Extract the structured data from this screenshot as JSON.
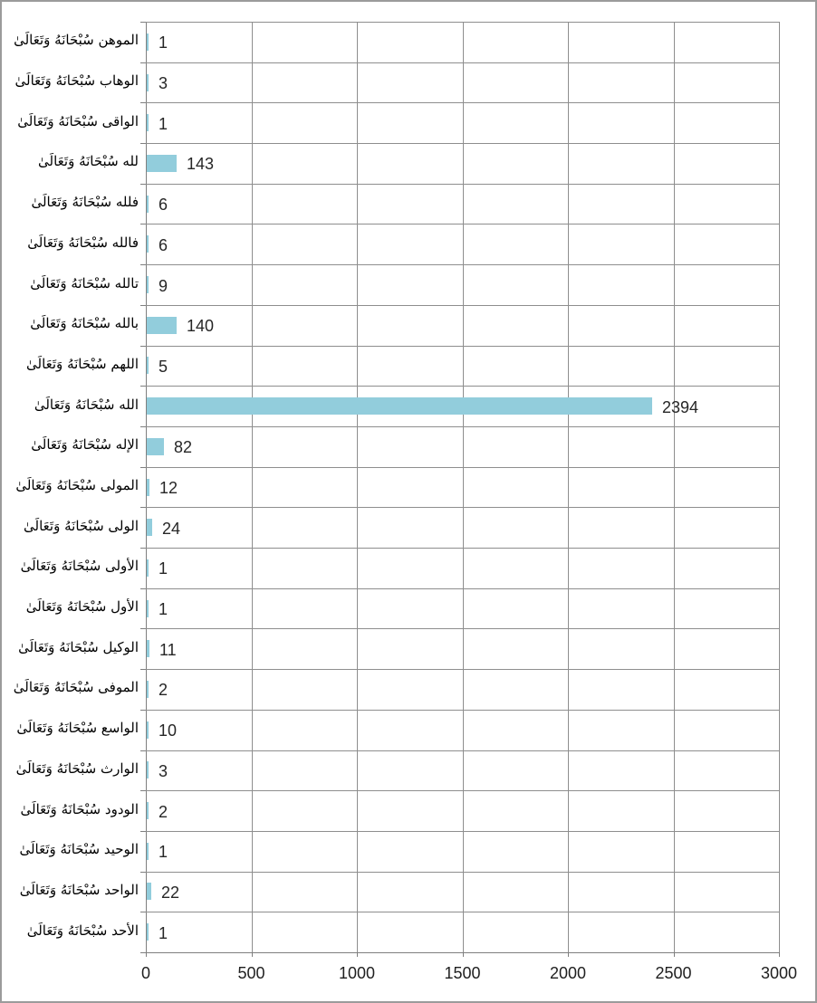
{
  "window": {
    "background": "#ffffff",
    "border_color": "#9b9b9b"
  },
  "chart_data": {
    "type": "bar",
    "orientation": "horizontal",
    "title": "",
    "xlabel": "",
    "ylabel": "",
    "categories": [
      "الموهن سُبْحَانَهُ وَتَعَالَىٰ",
      "الوهاب سُبْحَانَهُ وَتَعَالَىٰ",
      "الواقى سُبْحَانَهُ وَتَعَالَىٰ",
      "لله سُبْحَانَهُ وَتَعَالَىٰ",
      "فلله سُبْحَانَهُ وَتَعَالَىٰ",
      "فالله سُبْحَانَهُ وَتَعَالَىٰ",
      "تالله سُبْحَانَهُ وَتَعَالَىٰ",
      "بالله سُبْحَانَهُ وَتَعَالَىٰ",
      "اللهم سُبْحَانَهُ وَتَعَالَىٰ",
      "الله سُبْحَانَهُ وَتَعَالَىٰ",
      "الإله سُبْحَانَهُ وَتَعَالَىٰ",
      "المولى سُبْحَانَهُ وَتَعَالَىٰ",
      "الولى سُبْحَانَهُ وَتَعَالَىٰ",
      "الأولى سُبْحَانَهُ وَتَعَالَىٰ",
      "الأول سُبْحَانَهُ وَتَعَالَىٰ",
      "الوكيل سُبْحَانَهُ وَتَعَالَىٰ",
      "الموفى سُبْحَانَهُ وَتَعَالَىٰ",
      "الواسع سُبْحَانَهُ وَتَعَالَىٰ",
      "الوارث سُبْحَانَهُ وَتَعَالَىٰ",
      "الودود سُبْحَانَهُ وَتَعَالَىٰ",
      "الوحيد سُبْحَانَهُ وَتَعَالَىٰ",
      "الواحد سُبْحَانَهُ وَتَعَالَىٰ",
      "الأحد سُبْحَانَهُ وَتَعَالَىٰ"
    ],
    "values": [
      1,
      3,
      1,
      143,
      6,
      6,
      9,
      140,
      5,
      2394,
      82,
      12,
      24,
      1,
      1,
      11,
      2,
      10,
      3,
      2,
      1,
      22,
      1
    ],
    "data_labels_shown": true,
    "xlim": [
      0,
      3000
    ],
    "x_ticks": [
      "0",
      "500",
      "1000",
      "1500",
      "2000",
      "2500",
      "3000"
    ],
    "x_tick_values": [
      0,
      500,
      1000,
      1500,
      2000,
      2500,
      3000
    ],
    "grid": true,
    "legend": "none",
    "bar_color": "#92cddc",
    "gridline_color": "#8e8e8e",
    "value_label_color": "#262626"
  }
}
